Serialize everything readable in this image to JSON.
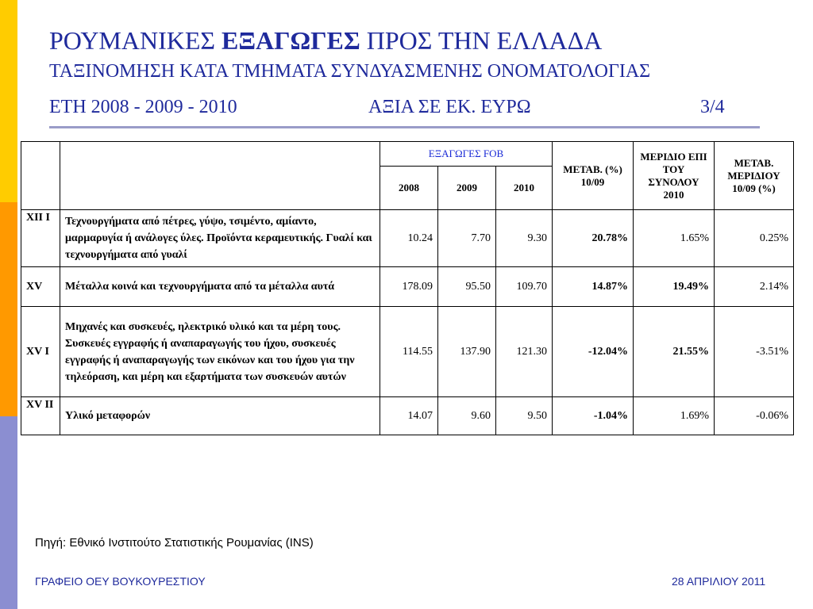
{
  "title": {
    "line1_part1": "ΡΟΥΜΑΝΙΚΕΣ ",
    "line1_bold": "ΕΞΑΓΩΓΕΣ",
    "line1_part2": " ΠΡΟΣ ΤΗΝ ΕΛΛΑΔΑ",
    "line2": "ΤΑΞΙΝΟΜΗΣΗ ΚΑΤΑ ΤΜΗΜΑΤΑ ΣΥΝΔΥΑΣΜΕΝΗΣ ΟΝΟΜΑΤΟΛΟΓΙΑΣ",
    "years": "ΕΤΗ 2008 - 2009 - 2010",
    "value_unit": "ΑΞΙΑ ΣΕ ΕΚ. ΕΥΡΩ",
    "page": "3/4"
  },
  "table": {
    "headers": {
      "exports_fob": "ΕΞΑΓΩΓΕΣ FOB",
      "y2008": "2008",
      "y2009": "2009",
      "y2010": "2010",
      "change": "ΜΕΤΑΒ. (%) 10/09",
      "share": "ΜΕΡΙΔΙΟ ΕΠΙ ΤΟΥ ΣΥΝΟΛΟΥ 2010",
      "share_change": "ΜΕΤΑΒ. ΜΕΡΙΔΙΟΥ 10/09 (%)"
    },
    "rows": [
      {
        "code": "XII I",
        "description": "Τεχνουργήματα από πέτρες, γύψο, τσιμέντο, αμίαντο, μαρμαρυγία ή ανάλογες ύλες. Προϊόντα κεραμευτικής. Γυαλί και τεχνουργήματα από γυαλί",
        "y2008": "10.24",
        "y2009": "7.70",
        "y2010": "9.30",
        "change": "20.78%",
        "share": "1.65%",
        "share_change": "0.25%"
      },
      {
        "code": "XV",
        "description": "Μέταλλα κοινά και τεχνουργήματα από τα μέταλλα αυτά",
        "y2008": "178.09",
        "y2009": "95.50",
        "y2010": "109.70",
        "change": "14.87%",
        "share": "19.49%",
        "share_change": "2.14%"
      },
      {
        "code": "XV I",
        "description": "Μηχανές και συσκευές, ηλεκτρικό υλικό και τα μέρη τους. Συσκευές εγγραφής ή αναπαραγωγής του ήχου, συσκευές εγγραφής ή αναπαραγωγής των εικόνων και του ήχου για την τηλεόραση, και μέρη και εξαρτήματα των συσκευών αυτών",
        "y2008": "114.55",
        "y2009": "137.90",
        "y2010": "121.30",
        "change": "-12.04%",
        "share": "21.55%",
        "share_change": "-3.51%"
      },
      {
        "code": "XV II",
        "description": "Υλικό μεταφορών",
        "y2008": "14.07",
        "y2009": "9.60",
        "y2010": "9.50",
        "change": "-1.04%",
        "share": "1.69%",
        "share_change": "-0.06%"
      }
    ]
  },
  "source": "Πηγή: Εθνικό Ινστιτούτο Στατιστικής Ρουμανίας (INS)",
  "footer": {
    "left": "ΓΡΑΦΕΙΟ ΟΕΥ ΒΟΥΚΟΥΡΕΣΤΙΟΥ",
    "right": "28 ΑΠΡΙΛΙΟΥ 2011"
  },
  "colors": {
    "title": "#1f2a9c",
    "fob_header": "#1a2ad6",
    "bar_yellow": "#ffcc00",
    "bar_orange": "#ff9900",
    "bar_violet": "#8b8ed1"
  }
}
